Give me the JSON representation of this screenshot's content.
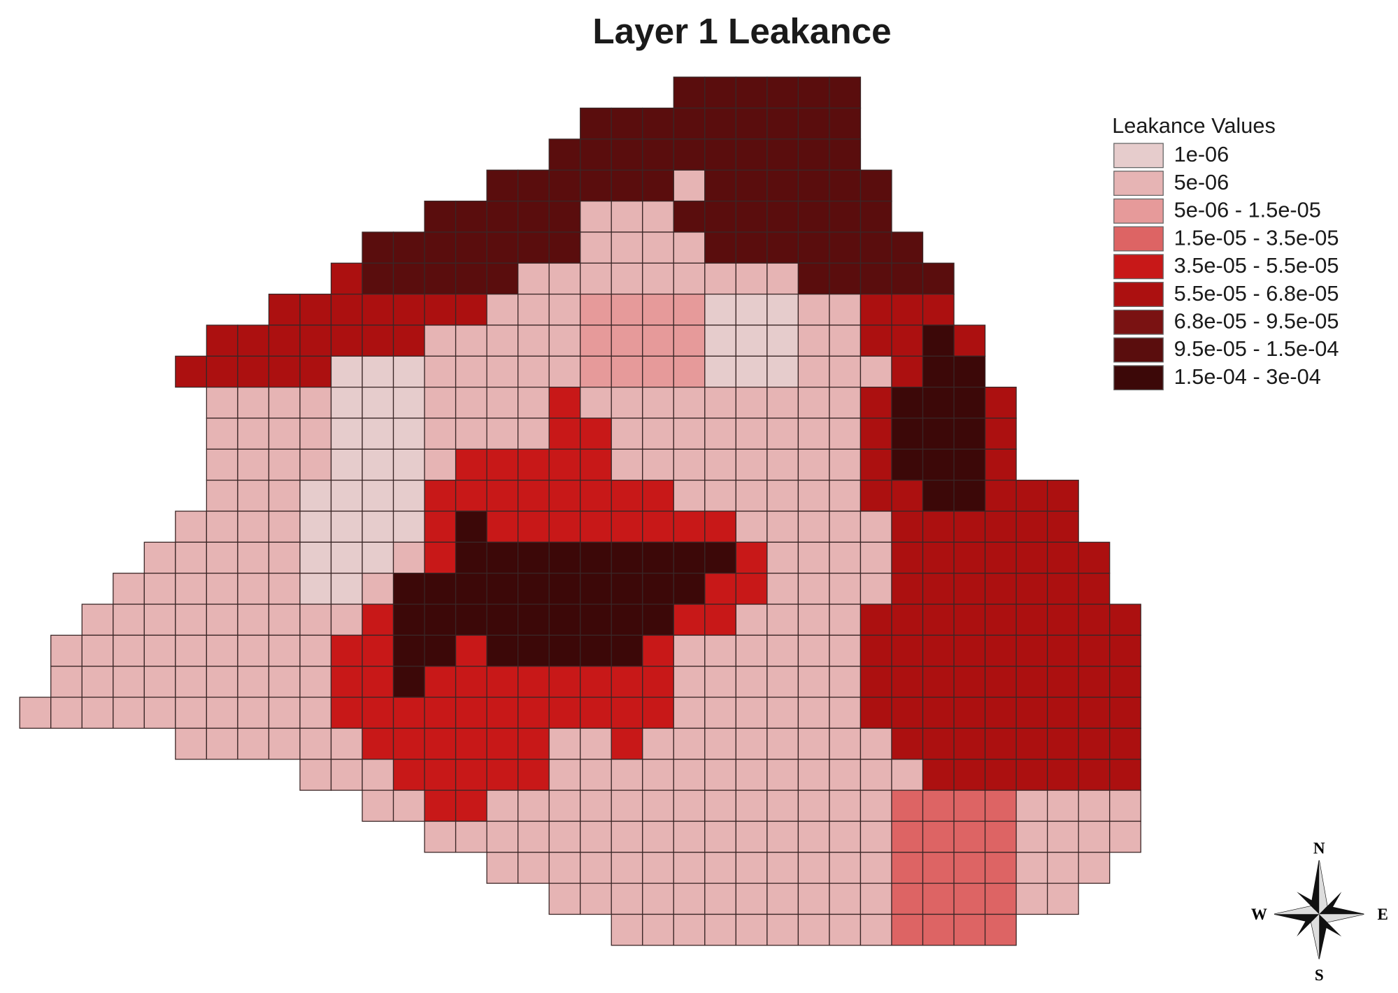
{
  "map": {
    "title": "Layer 1 Leakance",
    "legend": {
      "title": "Leakance Values",
      "items": [
        {
          "label": "1e-06",
          "color": "#e6cccc"
        },
        {
          "label": "5e-06",
          "color": "#e6b4b4"
        },
        {
          "label": "5e-06 - 1.5e-05",
          "color": "#e69a9a"
        },
        {
          "label": "1.5e-05 - 3.5e-05",
          "color": "#dd6464"
        },
        {
          "label": "3.5e-05 - 5.5e-05",
          "color": "#c81818"
        },
        {
          "label": "5.5e-05 - 6.8e-05",
          "color": "#ac1010"
        },
        {
          "label": "6.8e-05 - 9.5e-05",
          "color": "#7a1212"
        },
        {
          "label": "9.5e-05 - 1.5e-04",
          "color": "#5a0d0d"
        },
        {
          "label": "1.5e-04 - 3e-04",
          "color": "#3c0808"
        }
      ]
    },
    "compass": {
      "n": "N",
      "e": "E",
      "s": "S",
      "w": "W"
    },
    "cells": [
      [
        null,
        null,
        null,
        null,
        null,
        null,
        null,
        null,
        null,
        null,
        null,
        null,
        null,
        null,
        null,
        null,
        null,
        null,
        null,
        null,
        null,
        7,
        7,
        7,
        7,
        7,
        7,
        null,
        null,
        null,
        null,
        null,
        null,
        null,
        null,
        null
      ],
      [
        null,
        null,
        null,
        null,
        null,
        null,
        null,
        null,
        null,
        null,
        null,
        null,
        null,
        null,
        null,
        null,
        null,
        null,
        7,
        7,
        7,
        7,
        7,
        7,
        7,
        7,
        7,
        null,
        null,
        null,
        null,
        null,
        null,
        null,
        null,
        null
      ],
      [
        null,
        null,
        null,
        null,
        null,
        null,
        null,
        null,
        null,
        null,
        null,
        null,
        null,
        null,
        null,
        null,
        null,
        7,
        7,
        7,
        7,
        7,
        7,
        7,
        7,
        7,
        7,
        null,
        null,
        null,
        null,
        null,
        null,
        null,
        null,
        null
      ],
      [
        null,
        null,
        null,
        null,
        null,
        null,
        null,
        null,
        null,
        null,
        null,
        null,
        null,
        null,
        null,
        7,
        7,
        7,
        7,
        7,
        7,
        1,
        7,
        7,
        7,
        7,
        7,
        7,
        null,
        null,
        null,
        null,
        null,
        null,
        null,
        null
      ],
      [
        null,
        null,
        null,
        null,
        null,
        null,
        null,
        null,
        null,
        null,
        null,
        null,
        null,
        7,
        7,
        7,
        7,
        7,
        1,
        1,
        1,
        7,
        7,
        7,
        7,
        7,
        7,
        7,
        null,
        null,
        null,
        null,
        null,
        null,
        null,
        null
      ],
      [
        null,
        null,
        null,
        null,
        null,
        null,
        null,
        null,
        null,
        null,
        null,
        7,
        7,
        7,
        7,
        7,
        7,
        7,
        1,
        1,
        1,
        1,
        7,
        7,
        7,
        7,
        7,
        7,
        7,
        null,
        null,
        null,
        null,
        null,
        null,
        null
      ],
      [
        null,
        null,
        null,
        null,
        null,
        null,
        null,
        null,
        null,
        null,
        5,
        7,
        7,
        7,
        7,
        7,
        1,
        1,
        1,
        1,
        1,
        1,
        1,
        1,
        1,
        7,
        7,
        7,
        7,
        7,
        null,
        null,
        null,
        null,
        null,
        null
      ],
      [
        null,
        null,
        null,
        null,
        null,
        null,
        null,
        null,
        5,
        5,
        5,
        5,
        5,
        5,
        5,
        1,
        1,
        1,
        2,
        2,
        2,
        2,
        0,
        0,
        0,
        1,
        1,
        5,
        5,
        5,
        null,
        null,
        null,
        null,
        null,
        null
      ],
      [
        null,
        null,
        null,
        null,
        null,
        null,
        5,
        5,
        5,
        5,
        5,
        5,
        5,
        1,
        1,
        1,
        1,
        1,
        2,
        2,
        2,
        2,
        0,
        0,
        0,
        1,
        1,
        5,
        5,
        8,
        5,
        null,
        null,
        null,
        null,
        null
      ],
      [
        null,
        null,
        null,
        null,
        null,
        5,
        5,
        5,
        5,
        5,
        0,
        0,
        0,
        1,
        1,
        1,
        1,
        1,
        2,
        2,
        2,
        2,
        0,
        0,
        0,
        1,
        1,
        1,
        5,
        8,
        8,
        null,
        null,
        null,
        null,
        null
      ],
      [
        null,
        null,
        null,
        null,
        null,
        null,
        1,
        1,
        1,
        1,
        0,
        0,
        0,
        1,
        1,
        1,
        1,
        4,
        1,
        1,
        1,
        1,
        1,
        1,
        1,
        1,
        1,
        5,
        8,
        8,
        8,
        5,
        null,
        null,
        null,
        null
      ],
      [
        null,
        null,
        null,
        null,
        null,
        null,
        1,
        1,
        1,
        1,
        0,
        0,
        0,
        1,
        1,
        1,
        1,
        4,
        4,
        1,
        1,
        1,
        1,
        1,
        1,
        1,
        1,
        5,
        8,
        8,
        8,
        5,
        null,
        null,
        null,
        null
      ],
      [
        null,
        null,
        null,
        null,
        null,
        null,
        1,
        1,
        1,
        1,
        0,
        0,
        0,
        1,
        4,
        4,
        4,
        4,
        4,
        1,
        1,
        1,
        1,
        1,
        1,
        1,
        1,
        5,
        8,
        8,
        8,
        5,
        null,
        null,
        null,
        null
      ],
      [
        null,
        null,
        null,
        null,
        null,
        null,
        1,
        1,
        1,
        0,
        0,
        0,
        0,
        4,
        4,
        4,
        4,
        4,
        4,
        4,
        4,
        1,
        1,
        1,
        1,
        1,
        1,
        5,
        5,
        8,
        8,
        5,
        5,
        5,
        null,
        null
      ],
      [
        null,
        null,
        null,
        null,
        null,
        1,
        1,
        1,
        1,
        0,
        0,
        0,
        0,
        4,
        8,
        4,
        4,
        4,
        4,
        4,
        4,
        4,
        4,
        1,
        1,
        1,
        1,
        1,
        5,
        5,
        5,
        5,
        5,
        5,
        null,
        null
      ],
      [
        null,
        null,
        null,
        null,
        1,
        1,
        1,
        1,
        1,
        0,
        0,
        0,
        1,
        4,
        8,
        8,
        8,
        8,
        8,
        8,
        8,
        8,
        8,
        4,
        1,
        1,
        1,
        1,
        5,
        5,
        5,
        5,
        5,
        5,
        5,
        null
      ],
      [
        null,
        null,
        null,
        1,
        1,
        1,
        1,
        1,
        1,
        0,
        0,
        1,
        8,
        8,
        8,
        8,
        8,
        8,
        8,
        8,
        8,
        8,
        4,
        4,
        1,
        1,
        1,
        1,
        5,
        5,
        5,
        5,
        5,
        5,
        5,
        null
      ],
      [
        null,
        null,
        1,
        1,
        1,
        1,
        1,
        1,
        1,
        1,
        1,
        4,
        8,
        8,
        8,
        8,
        8,
        8,
        8,
        8,
        8,
        4,
        4,
        1,
        1,
        1,
        1,
        5,
        5,
        5,
        5,
        5,
        5,
        5,
        5,
        5
      ],
      [
        null,
        1,
        1,
        1,
        1,
        1,
        1,
        1,
        1,
        1,
        4,
        4,
        8,
        8,
        4,
        8,
        8,
        8,
        8,
        8,
        4,
        1,
        1,
        1,
        1,
        1,
        1,
        5,
        5,
        5,
        5,
        5,
        5,
        5,
        5,
        5
      ],
      [
        null,
        1,
        1,
        1,
        1,
        1,
        1,
        1,
        1,
        1,
        4,
        4,
        8,
        4,
        4,
        4,
        4,
        4,
        4,
        4,
        4,
        1,
        1,
        1,
        1,
        1,
        1,
        5,
        5,
        5,
        5,
        5,
        5,
        5,
        5,
        5
      ],
      [
        1,
        1,
        1,
        1,
        1,
        1,
        1,
        1,
        1,
        1,
        4,
        4,
        4,
        4,
        4,
        4,
        4,
        4,
        4,
        4,
        4,
        1,
        1,
        1,
        1,
        1,
        1,
        5,
        5,
        5,
        5,
        5,
        5,
        5,
        5,
        5
      ],
      [
        null,
        null,
        null,
        null,
        null,
        1,
        1,
        1,
        1,
        1,
        1,
        4,
        4,
        4,
        4,
        4,
        4,
        1,
        1,
        4,
        1,
        1,
        1,
        1,
        1,
        1,
        1,
        1,
        5,
        5,
        5,
        5,
        5,
        5,
        5,
        5
      ],
      [
        null,
        null,
        null,
        null,
        null,
        null,
        null,
        null,
        null,
        1,
        1,
        1,
        4,
        4,
        4,
        4,
        4,
        1,
        1,
        1,
        1,
        1,
        1,
        1,
        1,
        1,
        1,
        1,
        1,
        5,
        5,
        5,
        5,
        5,
        5,
        5
      ],
      [
        null,
        null,
        null,
        null,
        null,
        null,
        null,
        null,
        null,
        null,
        null,
        1,
        1,
        4,
        4,
        1,
        1,
        1,
        1,
        1,
        1,
        1,
        1,
        1,
        1,
        1,
        1,
        1,
        3,
        3,
        3,
        3,
        1,
        1,
        1,
        1
      ],
      [
        null,
        null,
        null,
        null,
        null,
        null,
        null,
        null,
        null,
        null,
        null,
        null,
        null,
        1,
        1,
        1,
        1,
        1,
        1,
        1,
        1,
        1,
        1,
        1,
        1,
        1,
        1,
        1,
        3,
        3,
        3,
        3,
        1,
        1,
        1,
        1
      ],
      [
        null,
        null,
        null,
        null,
        null,
        null,
        null,
        null,
        null,
        null,
        null,
        null,
        null,
        null,
        null,
        1,
        1,
        1,
        1,
        1,
        1,
        1,
        1,
        1,
        1,
        1,
        1,
        1,
        3,
        3,
        3,
        3,
        1,
        1,
        1,
        null
      ],
      [
        null,
        null,
        null,
        null,
        null,
        null,
        null,
        null,
        null,
        null,
        null,
        null,
        null,
        null,
        null,
        null,
        null,
        1,
        1,
        1,
        1,
        1,
        1,
        1,
        1,
        1,
        1,
        1,
        3,
        3,
        3,
        3,
        1,
        1,
        null,
        null
      ],
      [
        null,
        null,
        null,
        null,
        null,
        null,
        null,
        null,
        null,
        null,
        null,
        null,
        null,
        null,
        null,
        null,
        null,
        null,
        null,
        1,
        1,
        1,
        1,
        1,
        1,
        1,
        1,
        1,
        3,
        3,
        3,
        3,
        null,
        null,
        null,
        null
      ]
    ]
  }
}
